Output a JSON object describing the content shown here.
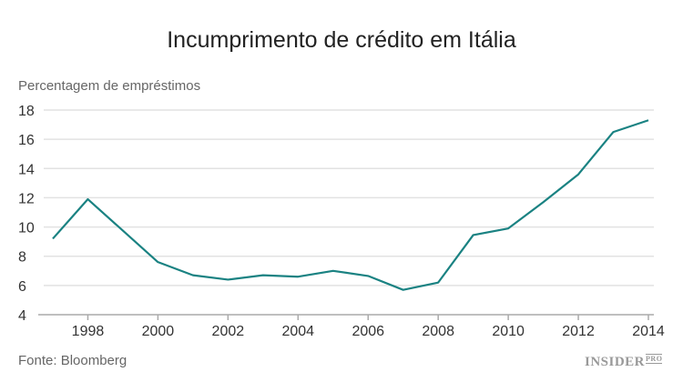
{
  "chart_data": {
    "type": "line",
    "title": "Incumprimento de crédito em Itália",
    "ylabel": "Percentagem de empréstimos",
    "xlabel": "",
    "source": "Fonte: Bloomberg",
    "logo": {
      "text": "INSIDER",
      "suffix": "PRO"
    },
    "x": [
      1997,
      1998,
      1999,
      2000,
      2001,
      2002,
      2003,
      2004,
      2005,
      2006,
      2007,
      2008,
      2009,
      2010,
      2011,
      2012,
      2013,
      2014
    ],
    "series": [
      {
        "values": [
          9.2,
          11.9,
          9.75,
          7.6,
          6.7,
          6.4,
          6.7,
          6.6,
          7.0,
          6.65,
          5.7,
          6.2,
          9.45,
          9.9,
          11.7,
          13.6,
          16.5,
          17.3
        ],
        "color": "#1a8282"
      }
    ],
    "xticks": [
      "1998",
      "2000",
      "2002",
      "2004",
      "2006",
      "2008",
      "2010",
      "2012",
      "2014"
    ],
    "yticks": [
      "4",
      "6",
      "8",
      "10",
      "12",
      "14",
      "16",
      "18"
    ],
    "ylim": [
      4,
      18
    ],
    "xlim": [
      1997,
      2014
    ],
    "grid": true
  }
}
